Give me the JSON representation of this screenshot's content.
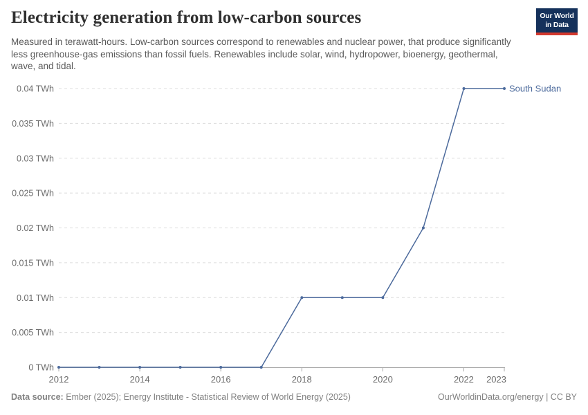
{
  "header": {
    "title": "Electricity generation from low-carbon sources",
    "subtitle": "Measured in terawatt-hours. Low-carbon sources correspond to renewables and nuclear power, that produce significantly less greenhouse-gas emissions than fossil fuels. Renewables include solar, wind, hydropower, bioenergy, geothermal, wave, and tidal.",
    "logo": {
      "line1": "Our World",
      "line2": "in Data"
    }
  },
  "chart_data": {
    "type": "line",
    "title": "Electricity generation from low-carbon sources",
    "unit": "TWh",
    "xlim": [
      2012,
      2023
    ],
    "ylim": [
      0,
      0.04
    ],
    "grid": "dashed horizontal gridlines",
    "legend_position": "end-of-line label",
    "x_tick_labels": [
      2012,
      2014,
      2016,
      2018,
      2020,
      2022,
      2023
    ],
    "y_ticks": [
      {
        "value": 0,
        "label": "0 TWh"
      },
      {
        "value": 0.005,
        "label": "0.005 TWh"
      },
      {
        "value": 0.01,
        "label": "0.01 TWh"
      },
      {
        "value": 0.015,
        "label": "0.015 TWh"
      },
      {
        "value": 0.02,
        "label": "0.02 TWh"
      },
      {
        "value": 0.025,
        "label": "0.025 TWh"
      },
      {
        "value": 0.03,
        "label": "0.03 TWh"
      },
      {
        "value": 0.035,
        "label": "0.035 TWh"
      },
      {
        "value": 0.04,
        "label": "0.04 TWh"
      }
    ],
    "series": [
      {
        "name": "South Sudan",
        "color": "#4c6a9c",
        "x": [
          2012,
          2013,
          2014,
          2015,
          2016,
          2017,
          2018,
          2019,
          2020,
          2021,
          2022,
          2023
        ],
        "values": [
          0,
          0,
          0,
          0,
          0,
          0,
          0.01,
          0.01,
          0.01,
          0.02,
          0.04,
          0.04
        ]
      }
    ]
  },
  "footer": {
    "datasource_label": "Data source:",
    "datasource_text": " Ember (2025); Energy Institute - Statistical Review of World Energy (2025)",
    "credit": "OurWorldinData.org/energy | CC BY"
  },
  "colors": {
    "line": "#4c6a9c",
    "grid": "#dcdcdc",
    "axis": "#a7a7a7",
    "tick_text": "#6b6b6b",
    "title_text": "#2f2f2f",
    "subtitle_text": "#595959",
    "footer_text": "#828282",
    "logo_bg": "#15315b",
    "logo_bar": "#d3392e"
  }
}
